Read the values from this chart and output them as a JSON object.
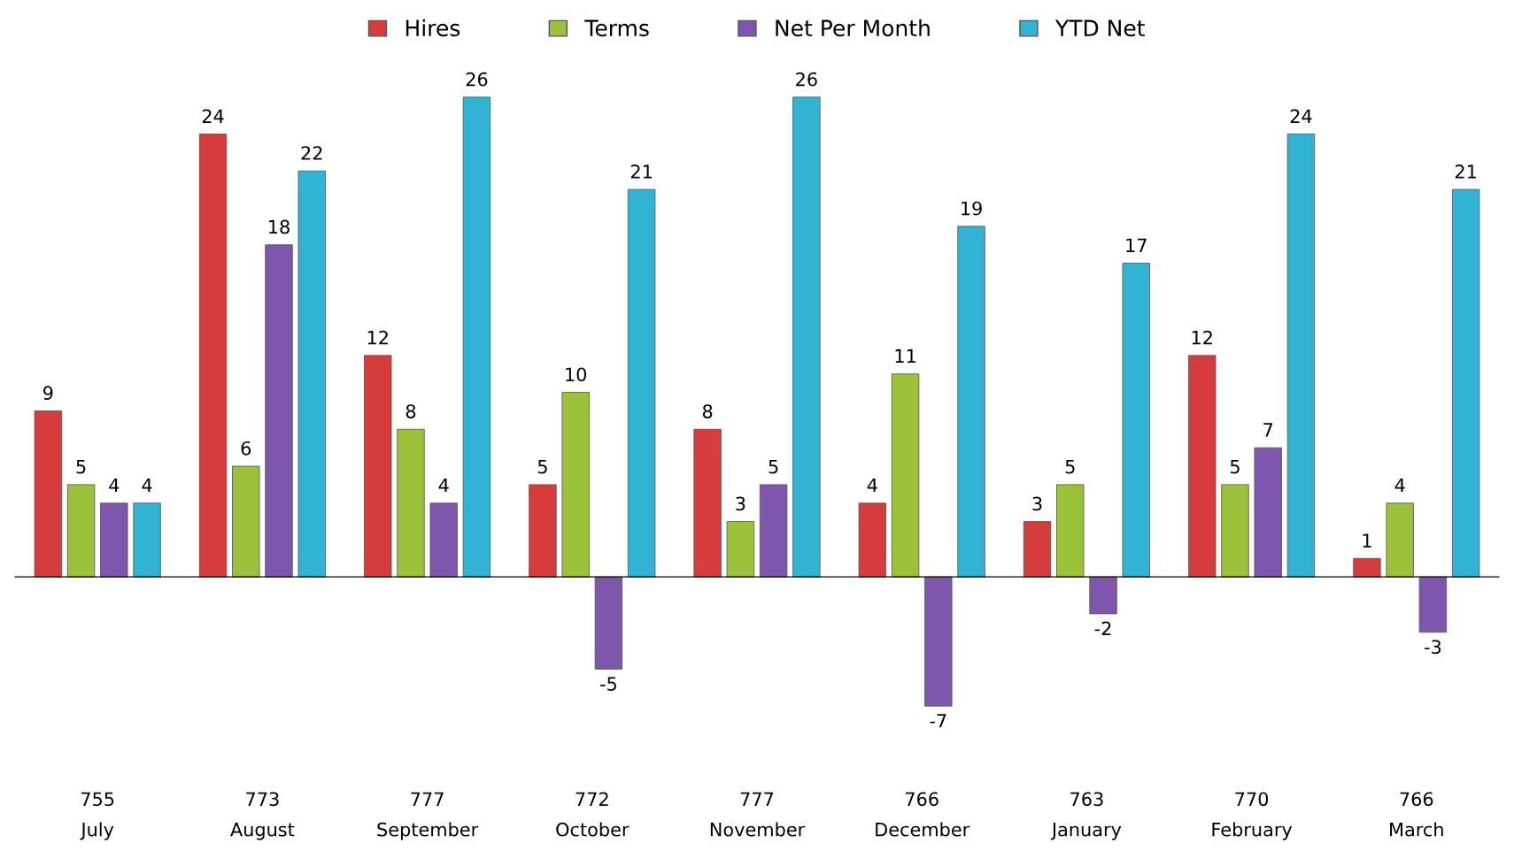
{
  "chart_data": {
    "type": "bar",
    "categories": [
      "755\nJuly",
      "773\nAugust",
      "777\nSeptember",
      "772\nOctober",
      "777\nNovember",
      "766\nDecember",
      "763\nJanuary",
      "770\nFebruary",
      "766\nMarch"
    ],
    "series": [
      {
        "name": "Hires",
        "color": "#d63c3c",
        "values": [
          9,
          24,
          12,
          5,
          8,
          4,
          3,
          12,
          1
        ]
      },
      {
        "name": "Terms",
        "color": "#9cc23a",
        "values": [
          5,
          6,
          8,
          10,
          3,
          11,
          5,
          5,
          4
        ]
      },
      {
        "name": "Net Per Month",
        "color": "#7e56ad",
        "values": [
          4,
          18,
          4,
          -5,
          5,
          -7,
          -2,
          7,
          -3
        ]
      },
      {
        "name": "YTD Net",
        "color": "#31b3d4",
        "values": [
          4,
          22,
          26,
          21,
          26,
          19,
          17,
          24,
          21
        ]
      }
    ],
    "data_labels": true,
    "legend": "top",
    "grid": false
  }
}
